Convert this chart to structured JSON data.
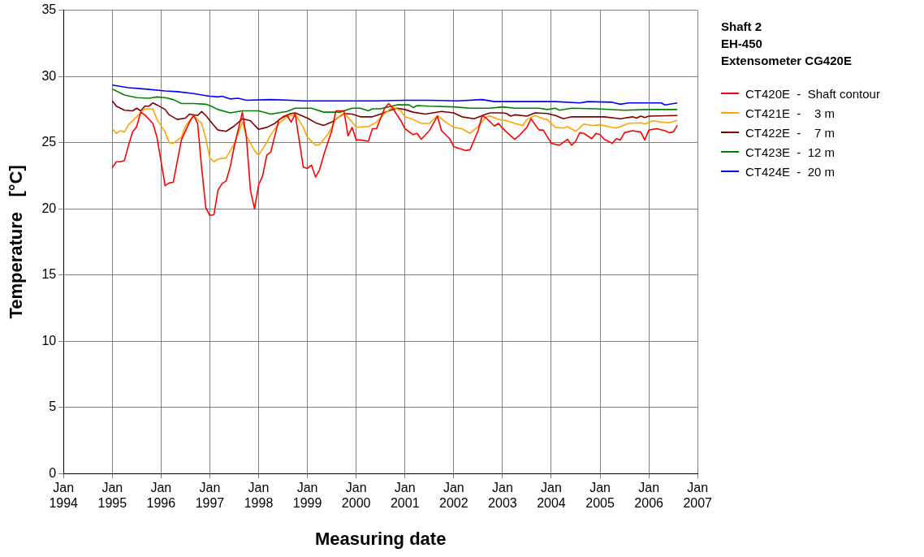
{
  "chart_data": {
    "type": "line",
    "title": "Shaft 2",
    "subtitle": "EH-450",
    "annotations": [
      "Extensometer CG420E"
    ],
    "xlabel": "Measuring date",
    "ylabel": "Temperature   [°C]",
    "xlim": [
      "1994-01",
      "2007-01"
    ],
    "xticks": [
      {
        "value": "1994-01",
        "label": "Jan 1994"
      },
      {
        "value": "1995-01",
        "label": "Jan 1995"
      },
      {
        "value": "1996-01",
        "label": "Jan 1996"
      },
      {
        "value": "1997-01",
        "label": "Jan 1997"
      },
      {
        "value": "1998-01",
        "label": "Jan 1998"
      },
      {
        "value": "1999-01",
        "label": "Jan 1999"
      },
      {
        "value": "2000-01",
        "label": "Jan 2000"
      },
      {
        "value": "2001-01",
        "label": "Jan 2001"
      },
      {
        "value": "2002-01",
        "label": "Jan 2002"
      },
      {
        "value": "2003-01",
        "label": "Jan 2003"
      },
      {
        "value": "2004-01",
        "label": "Jan 2004"
      },
      {
        "value": "2005-01",
        "label": "Jan 2005"
      },
      {
        "value": "2006-01",
        "label": "Jan 2006"
      },
      {
        "value": "2007-01",
        "label": "Jan 2007"
      }
    ],
    "ylim": [
      0,
      35
    ],
    "yticks": [
      0,
      5,
      10,
      15,
      20,
      25,
      30,
      35
    ],
    "grid": true,
    "legend": "right",
    "marker": "none",
    "line_style": "solid",
    "series": [
      {
        "name": "CT420E  -  Shaft contour",
        "color": "#ff0000",
        "x": [
          "1995-01",
          "1995-02",
          "1995-03",
          "1995-04",
          "1995-05",
          "1995-06",
          "1995-07",
          "1995-08",
          "1995-09",
          "1995-11",
          "1995-12",
          "1996-02",
          "1996-03",
          "1996-04",
          "1996-06",
          "1996-08",
          "1996-09",
          "1996-10",
          "1996-11",
          "1996-12",
          "1997-01",
          "1997-02",
          "1997-03",
          "1997-04",
          "1997-05",
          "1997-06",
          "1997-07",
          "1997-09",
          "1997-10",
          "1997-11",
          "1997-12",
          "1998-01",
          "1998-02",
          "1998-03",
          "1998-04",
          "1998-06",
          "1998-07",
          "1998-08",
          "1998-09",
          "1998-10",
          "1998-12",
          "1999-01",
          "1999-02",
          "1999-03",
          "1999-04",
          "1999-05",
          "1999-07",
          "1999-08",
          "1999-10",
          "1999-11",
          "1999-12",
          "2000-01",
          "2000-02",
          "2000-04",
          "2000-05",
          "2000-06",
          "2000-08",
          "2000-09",
          "2000-10",
          "2000-12",
          "2001-01",
          "2001-03",
          "2001-04",
          "2001-05",
          "2001-07",
          "2001-09",
          "2001-10",
          "2001-12",
          "2002-01",
          "2002-02",
          "2002-04",
          "2002-05",
          "2002-07",
          "2002-08",
          "2002-09",
          "2002-11",
          "2002-12",
          "2003-01",
          "2003-02",
          "2003-04",
          "2003-05",
          "2003-07",
          "2003-08",
          "2003-10",
          "2003-11",
          "2004-01",
          "2004-03",
          "2004-05",
          "2004-06",
          "2004-07",
          "2004-08",
          "2004-09",
          "2004-11",
          "2004-12",
          "2005-01",
          "2005-02",
          "2005-04",
          "2005-05",
          "2005-06",
          "2005-07",
          "2005-09",
          "2005-11",
          "2005-12",
          "2006-01",
          "2006-03",
          "2006-05",
          "2006-06",
          "2006-07",
          "2006-08"
        ],
        "values": [
          23.1,
          23.55,
          23.55,
          23.65,
          24.8,
          25.8,
          26.2,
          27.3,
          27.1,
          26.45,
          25.4,
          21.75,
          21.95,
          22.0,
          25.2,
          26.55,
          27.05,
          26.45,
          23.05,
          20.1,
          19.5,
          19.55,
          21.4,
          21.9,
          22.1,
          23.15,
          24.7,
          27.3,
          25.4,
          21.4,
          20.0,
          21.8,
          22.5,
          24.05,
          24.3,
          26.75,
          26.9,
          27.05,
          26.55,
          27.15,
          23.15,
          23.05,
          23.3,
          22.4,
          22.95,
          24.05,
          25.9,
          27.4,
          27.4,
          25.5,
          26.15,
          25.2,
          25.2,
          25.1,
          26.05,
          26.05,
          27.6,
          27.95,
          27.6,
          26.65,
          26.05,
          25.6,
          25.7,
          25.25,
          25.9,
          27.0,
          25.9,
          25.3,
          24.7,
          24.6,
          24.4,
          24.45,
          25.9,
          27.05,
          26.85,
          26.25,
          26.45,
          26.1,
          25.8,
          25.25,
          25.5,
          26.15,
          26.8,
          25.95,
          25.95,
          24.95,
          24.8,
          25.25,
          24.8,
          25.1,
          25.75,
          25.7,
          25.3,
          25.7,
          25.6,
          25.25,
          24.95,
          25.3,
          25.2,
          25.75,
          25.9,
          25.8,
          25.2,
          25.95,
          26.05,
          25.9,
          25.75,
          25.8,
          26.3
        ]
      },
      {
        "name": "CT421E  -    3 m",
        "color": "#ffa500",
        "x": [
          "1995-01",
          "1995-02",
          "1995-03",
          "1995-04",
          "1995-05",
          "1995-07",
          "1995-09",
          "1995-11",
          "1995-12",
          "1996-02",
          "1996-03",
          "1996-04",
          "1996-06",
          "1996-07",
          "1996-09",
          "1996-10",
          "1996-11",
          "1996-12",
          "1997-01",
          "1997-02",
          "1997-03",
          "1997-05",
          "1997-07",
          "1997-09",
          "1997-10",
          "1997-12",
          "1998-01",
          "1998-03",
          "1998-04",
          "1998-06",
          "1998-08",
          "1998-10",
          "1998-12",
          "1999-01",
          "1999-03",
          "1999-04",
          "1999-06",
          "1999-08",
          "1999-10",
          "1999-12",
          "2000-01",
          "2000-03",
          "2000-04",
          "2000-06",
          "2000-08",
          "2000-10",
          "2000-12",
          "2001-01",
          "2001-03",
          "2001-05",
          "2001-07",
          "2001-09",
          "2001-11",
          "2002-01",
          "2002-03",
          "2002-05",
          "2002-07",
          "2002-09",
          "2002-10",
          "2002-12",
          "2003-02",
          "2003-04",
          "2003-06",
          "2003-07",
          "2003-09",
          "2003-11",
          "2003-12",
          "2004-02",
          "2004-04",
          "2004-05",
          "2004-07",
          "2004-09",
          "2004-11",
          "2005-01",
          "2005-03",
          "2005-05",
          "2005-08",
          "2005-11",
          "2005-12",
          "2006-02",
          "2006-04",
          "2006-06",
          "2006-08"
        ],
        "values": [
          26.05,
          25.7,
          25.9,
          25.8,
          26.35,
          26.95,
          27.55,
          27.55,
          26.75,
          25.8,
          25.0,
          24.95,
          25.4,
          26.25,
          27.05,
          26.75,
          26.45,
          25.3,
          23.85,
          23.55,
          23.75,
          23.85,
          24.9,
          26.55,
          25.5,
          24.4,
          24.05,
          25.0,
          25.6,
          26.45,
          26.95,
          27.15,
          26.15,
          25.4,
          24.8,
          24.85,
          25.6,
          26.75,
          27.25,
          26.55,
          26.15,
          26.2,
          26.2,
          26.55,
          27.2,
          27.7,
          27.4,
          26.95,
          26.75,
          26.45,
          26.45,
          27.05,
          26.55,
          26.15,
          26.05,
          25.7,
          26.2,
          26.95,
          27.0,
          26.75,
          26.65,
          26.45,
          26.3,
          26.75,
          27.05,
          26.8,
          26.75,
          26.15,
          26.1,
          26.2,
          25.85,
          26.4,
          26.3,
          26.35,
          26.2,
          26.1,
          26.45,
          26.5,
          26.4,
          26.65,
          26.55,
          26.5,
          26.7
        ]
      },
      {
        "name": "CT422E  -    7 m",
        "color": "#800000",
        "x": [
          "1995-01",
          "1995-02",
          "1995-04",
          "1995-06",
          "1995-07",
          "1995-08",
          "1995-09",
          "1995-10",
          "1995-11",
          "1995-12",
          "1996-02",
          "1996-03",
          "1996-05",
          "1996-07",
          "1996-08",
          "1996-10",
          "1996-11",
          "1996-12",
          "1997-02",
          "1997-03",
          "1997-05",
          "1997-07",
          "1997-09",
          "1997-11",
          "1998-01",
          "1998-03",
          "1998-05",
          "1998-07",
          "1998-09",
          "1998-10",
          "1999-01",
          "1999-03",
          "1999-05",
          "1999-07",
          "1999-10",
          "1999-12",
          "2000-02",
          "2000-05",
          "2000-07",
          "2000-09",
          "2000-11",
          "2001-01",
          "2001-03",
          "2001-06",
          "2001-10",
          "2002-01",
          "2002-03",
          "2002-06",
          "2002-09",
          "2002-10",
          "2003-01",
          "2003-02",
          "2003-03",
          "2003-04",
          "2003-07",
          "2003-09",
          "2003-12",
          "2004-02",
          "2004-04",
          "2004-06",
          "2004-10",
          "2005-02",
          "2005-06",
          "2005-09",
          "2005-10",
          "2005-11",
          "2005-12",
          "2006-01",
          "2006-08"
        ],
        "values": [
          28.15,
          27.75,
          27.45,
          27.4,
          27.6,
          27.4,
          27.75,
          27.75,
          28.0,
          27.85,
          27.5,
          27.1,
          26.75,
          26.85,
          27.15,
          27.05,
          27.35,
          27.05,
          26.3,
          25.95,
          25.85,
          26.25,
          26.8,
          26.65,
          26.0,
          26.15,
          26.45,
          26.95,
          27.2,
          27.25,
          26.85,
          26.5,
          26.3,
          26.55,
          27.2,
          27.15,
          26.95,
          26.95,
          27.15,
          27.4,
          27.6,
          27.5,
          27.3,
          27.15,
          27.35,
          27.25,
          26.95,
          26.8,
          27.15,
          27.25,
          27.25,
          27.2,
          27.0,
          27.1,
          27.0,
          27.25,
          27.2,
          27.05,
          26.8,
          26.95,
          26.95,
          26.95,
          26.8,
          26.95,
          26.85,
          27.0,
          26.9,
          27.0,
          27.05
        ]
      },
      {
        "name": "CT423E  -  12 m",
        "color": "#008000",
        "x": [
          "1995-01",
          "1995-04",
          "1995-07",
          "1995-10",
          "1995-12",
          "1996-02",
          "1996-04",
          "1996-06",
          "1996-09",
          "1996-12",
          "1997-01",
          "1997-03",
          "1997-06",
          "1997-09",
          "1998-01",
          "1998-04",
          "1998-08",
          "1998-10",
          "1999-02",
          "1999-05",
          "1999-09",
          "1999-12",
          "2000-02",
          "2000-04",
          "2000-05",
          "2000-07",
          "2000-11",
          "2001-02",
          "2001-03",
          "2001-04",
          "2001-07",
          "2002-01",
          "2002-05",
          "2002-09",
          "2002-10",
          "2003-01",
          "2003-04",
          "2003-10",
          "2003-12",
          "2004-02",
          "2004-03",
          "2004-06",
          "2004-12",
          "2005-07",
          "2006-01",
          "2006-08"
        ],
        "values": [
          29.05,
          28.6,
          28.4,
          28.35,
          28.45,
          28.4,
          28.25,
          27.95,
          27.95,
          27.9,
          27.8,
          27.5,
          27.25,
          27.4,
          27.4,
          27.15,
          27.35,
          27.6,
          27.6,
          27.3,
          27.3,
          27.6,
          27.6,
          27.4,
          27.55,
          27.55,
          27.85,
          27.85,
          27.65,
          27.8,
          27.75,
          27.7,
          27.6,
          27.6,
          27.6,
          27.7,
          27.6,
          27.6,
          27.5,
          27.6,
          27.45,
          27.6,
          27.55,
          27.45,
          27.5,
          27.5
        ]
      },
      {
        "name": "CT424E  -  20 m",
        "color": "#0000ff",
        "x": [
          "1995-01",
          "1995-05",
          "1995-09",
          "1996-02",
          "1996-05",
          "1996-09",
          "1996-12",
          "1997-01",
          "1997-03",
          "1997-04",
          "1997-06",
          "1997-08",
          "1997-10",
          "1998-04",
          "1998-09",
          "1998-12",
          "1999-05",
          "1999-12",
          "2000-06",
          "2001-01",
          "2001-07",
          "2002-02",
          "2002-08",
          "2002-11",
          "2003-04",
          "2004-02",
          "2004-08",
          "2004-10",
          "2005-04",
          "2005-06",
          "2005-08",
          "2006-04",
          "2006-05",
          "2006-08"
        ],
        "values": [
          29.35,
          29.15,
          29.05,
          28.9,
          28.85,
          28.7,
          28.55,
          28.5,
          28.45,
          28.5,
          28.3,
          28.35,
          28.2,
          28.25,
          28.2,
          28.15,
          28.15,
          28.15,
          28.15,
          28.2,
          28.2,
          28.15,
          28.25,
          28.1,
          28.1,
          28.1,
          28.0,
          28.1,
          28.05,
          27.9,
          28.0,
          28.0,
          27.85,
          28.0
        ]
      }
    ]
  }
}
